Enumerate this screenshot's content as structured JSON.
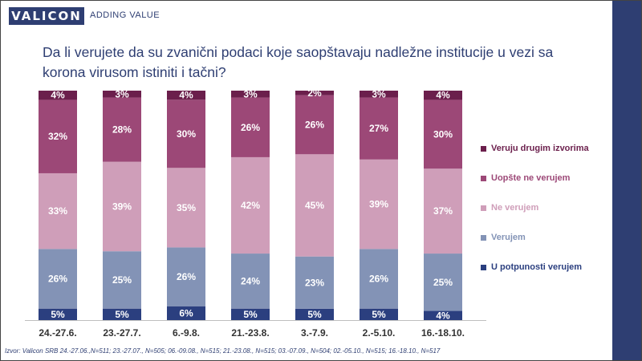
{
  "header": {
    "logo": "VALICON",
    "tagline": "ADDING VALUE"
  },
  "title": "Da li verujete da su zvanični podaci koje saopštavaju nadležne institucije u vezi sa korona virusom istiniti i tačni?",
  "source": "Izvor: Valicon SRB 24.-27.06.,N=511; 23.-27.07., N=505; 06.-09.08., N=515; 21.-23.08., N=515; 03.-07.09., N=504; 02.-05.10., N=515; 16.-18.10., N=517",
  "colors": {
    "brand": "#2e3e72",
    "sidebar": "#2e3e72"
  },
  "chart_data": {
    "type": "bar",
    "stacked": true,
    "normalized": true,
    "categories": [
      "24.-27.6.",
      "23.-27.7.",
      "6.-9.8.",
      "21.-23.8.",
      "3.-7.9.",
      "2.-5.10.",
      "16.-18.10."
    ],
    "series": [
      {
        "name": "U potpunosti verujem",
        "color": "#2b3f7f",
        "label_color": "#ffffff",
        "values": [
          5,
          5,
          6,
          5,
          5,
          5,
          4
        ]
      },
      {
        "name": "Verujem",
        "color": "#8393b6",
        "label_color": "#ffffff",
        "values": [
          26,
          25,
          26,
          24,
          23,
          26,
          25
        ]
      },
      {
        "name": "Ne verujem",
        "color": "#cf9eb9",
        "label_color": "#ffffff",
        "values": [
          33,
          39,
          35,
          42,
          45,
          39,
          37
        ]
      },
      {
        "name": "Uopšte ne verujem",
        "color": "#9c4877",
        "label_color": "#ffffff",
        "values": [
          32,
          28,
          30,
          26,
          26,
          27,
          30
        ]
      },
      {
        "name": "Veruju drugim izvorima",
        "color": "#6b1f4c",
        "label_color": "#ffffff",
        "values": [
          4,
          3,
          4,
          3,
          2,
          3,
          4
        ]
      }
    ],
    "value_suffix": "%",
    "legend_position": "right",
    "grid": false
  }
}
